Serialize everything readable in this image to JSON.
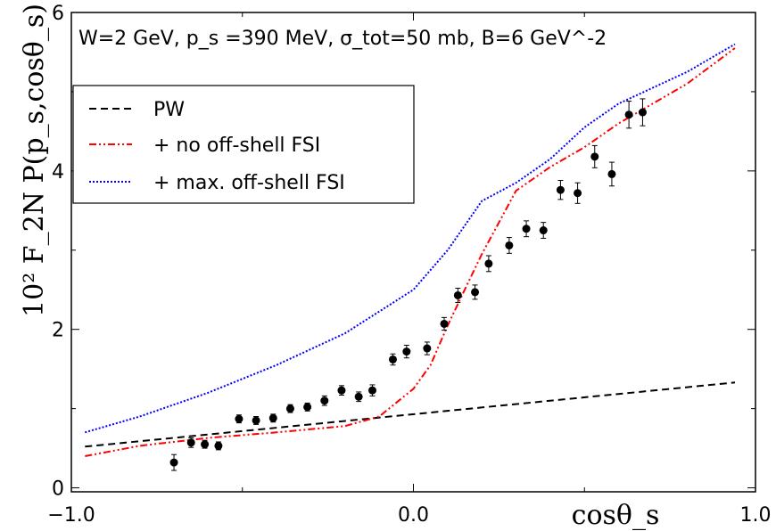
{
  "chart_data": {
    "type": "line",
    "title": "W=2 GeV, p_s =390 MeV, σ_tot=50 mb, B=6 GeV^-2",
    "xlabel": "cosθ_s",
    "ylabel": "10² F_2N P(p_s,cosθ_s)",
    "xlim": [
      -1.0,
      1.0
    ],
    "ylim": [
      -0.05,
      6.0
    ],
    "xticks": [
      -1.0,
      0.0,
      1.0
    ],
    "xtick_labels": [
      "−1.0",
      "0.0",
      "1.0"
    ],
    "yticks": [
      0,
      2,
      4,
      6
    ],
    "ytick_labels": [
      "0",
      "2",
      "4",
      "6"
    ],
    "grid": false,
    "legend_position": "upper-left",
    "series": [
      {
        "name": "PW",
        "style": "dashed",
        "color": "#000000",
        "x": [
          -0.96,
          0.94
        ],
        "y": [
          0.52,
          1.33
        ]
      },
      {
        "name": "+ no off-shell FSI",
        "style": "dash-dot",
        "color": "#ff0000",
        "x": [
          -0.96,
          -0.8,
          -0.6,
          -0.4,
          -0.2,
          -0.1,
          0.0,
          0.05,
          0.1,
          0.15,
          0.2,
          0.25,
          0.3,
          0.4,
          0.5,
          0.6,
          0.7,
          0.8,
          0.94
        ],
        "y": [
          0.4,
          0.53,
          0.63,
          0.7,
          0.78,
          0.9,
          1.25,
          1.55,
          2.05,
          2.5,
          2.95,
          3.35,
          3.75,
          4.05,
          4.3,
          4.6,
          4.85,
          5.1,
          5.55
        ]
      },
      {
        "name": "+ max. off-shell FSI",
        "style": "dotted",
        "color": "#0000ff",
        "x": [
          -0.96,
          -0.8,
          -0.6,
          -0.4,
          -0.2,
          0.0,
          0.1,
          0.2,
          0.3,
          0.4,
          0.5,
          0.6,
          0.7,
          0.8,
          0.94
        ],
        "y": [
          0.7,
          0.9,
          1.2,
          1.55,
          1.95,
          2.5,
          3.0,
          3.62,
          3.85,
          4.15,
          4.55,
          4.85,
          5.05,
          5.25,
          5.6
        ]
      }
    ],
    "points": {
      "color": "#000000",
      "x": [
        -0.7,
        -0.65,
        -0.61,
        -0.57,
        -0.51,
        -0.46,
        -0.41,
        -0.36,
        -0.31,
        -0.26,
        -0.21,
        -0.16,
        -0.12,
        -0.06,
        -0.02,
        0.04,
        0.09,
        0.13,
        0.18,
        0.22,
        0.28,
        0.33,
        0.38,
        0.43,
        0.48,
        0.53,
        0.58,
        0.63,
        0.67
      ],
      "y": [
        0.32,
        0.57,
        0.55,
        0.53,
        0.87,
        0.85,
        0.88,
        1.0,
        1.02,
        1.1,
        1.23,
        1.15,
        1.23,
        1.62,
        1.72,
        1.76,
        2.07,
        2.43,
        2.47,
        2.83,
        3.06,
        3.27,
        3.25,
        3.76,
        3.72,
        4.18,
        3.96,
        4.71,
        4.74
      ],
      "err": [
        0.1,
        0.06,
        0.05,
        0.05,
        0.05,
        0.05,
        0.05,
        0.05,
        0.05,
        0.06,
        0.06,
        0.06,
        0.07,
        0.07,
        0.08,
        0.08,
        0.08,
        0.09,
        0.09,
        0.1,
        0.1,
        0.1,
        0.1,
        0.12,
        0.13,
        0.14,
        0.15,
        0.17,
        0.17
      ]
    }
  }
}
